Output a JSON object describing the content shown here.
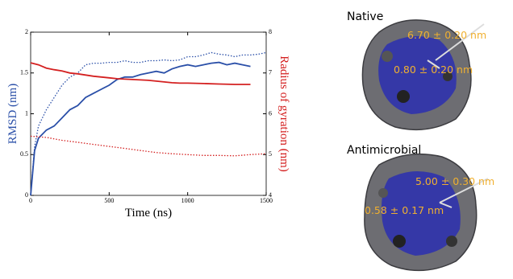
{
  "chart_data": {
    "type": "line",
    "xlabel": "Time (ns)",
    "ylabel": "RMSD (nm)",
    "y2label": "Radius of gyration (nm)",
    "ylabel_color": "#2a4fa8",
    "y2label_color": "#d42020",
    "xlim": [
      0,
      1500
    ],
    "xticks": [
      0,
      500,
      1000,
      1500
    ],
    "ylim": [
      0,
      2
    ],
    "yticks": [
      0,
      0.5,
      1,
      1.5,
      2
    ],
    "y2lim": [
      4,
      8
    ],
    "y2ticks": [
      4,
      5,
      6,
      7,
      8
    ],
    "series": [
      {
        "color": "#2a4fa8",
        "linestyle": "solid",
        "x": [
          0,
          25,
          50,
          100,
          150,
          200,
          250,
          300,
          350,
          400,
          450,
          500,
          550,
          600,
          650,
          700,
          750,
          800,
          850,
          900,
          950,
          1000,
          1050,
          1100,
          1150,
          1200,
          1250,
          1300,
          1350,
          1400
        ],
        "values": [
          0,
          0.55,
          0.7,
          0.8,
          0.85,
          0.95,
          1.05,
          1.1,
          1.2,
          1.25,
          1.3,
          1.35,
          1.42,
          1.45,
          1.45,
          1.48,
          1.5,
          1.52,
          1.5,
          1.55,
          1.58,
          1.6,
          1.58,
          1.6,
          1.62,
          1.63,
          1.6,
          1.62,
          1.6,
          1.58
        ]
      },
      {
        "color": "#2a4fa8",
        "linestyle": "dotted",
        "x": [
          0,
          25,
          50,
          100,
          150,
          200,
          250,
          300,
          350,
          400,
          450,
          500,
          550,
          600,
          650,
          700,
          750,
          800,
          850,
          900,
          950,
          1000,
          1050,
          1100,
          1150,
          1200,
          1250,
          1300,
          1350,
          1400,
          1450,
          1500
        ],
        "values": [
          0,
          0.6,
          0.85,
          1.05,
          1.2,
          1.35,
          1.45,
          1.5,
          1.6,
          1.62,
          1.62,
          1.63,
          1.63,
          1.65,
          1.63,
          1.63,
          1.65,
          1.65,
          1.66,
          1.65,
          1.66,
          1.7,
          1.7,
          1.72,
          1.75,
          1.73,
          1.72,
          1.7,
          1.72,
          1.72,
          1.73,
          1.75
        ]
      },
      {
        "color": "#d42020",
        "linestyle": "solid",
        "axis": "y2",
        "x": [
          0,
          50,
          100,
          150,
          200,
          250,
          300,
          350,
          400,
          450,
          500,
          550,
          600,
          650,
          700,
          750,
          800,
          850,
          900,
          950,
          1000,
          1100,
          1200,
          1300,
          1400
        ],
        "values": [
          7.25,
          7.2,
          7.12,
          7.08,
          7.05,
          7.0,
          6.98,
          6.95,
          6.92,
          6.9,
          6.88,
          6.86,
          6.85,
          6.84,
          6.83,
          6.82,
          6.8,
          6.78,
          6.76,
          6.75,
          6.75,
          6.74,
          6.73,
          6.72,
          6.72
        ]
      },
      {
        "color": "#d42020",
        "linestyle": "dotted",
        "axis": "y2",
        "x": [
          0,
          100,
          200,
          300,
          400,
          500,
          600,
          700,
          800,
          900,
          1000,
          1100,
          1200,
          1300,
          1400,
          1500
        ],
        "values": [
          5.45,
          5.42,
          5.35,
          5.3,
          5.25,
          5.2,
          5.15,
          5.1,
          5.05,
          5.02,
          5.0,
          4.98,
          4.98,
          4.97,
          5.0,
          5.02
        ]
      }
    ]
  },
  "images": [
    {
      "title": "Native",
      "annotations": [
        "6.70 ± 0.20 nm",
        "0.80 ± 0.20 nm"
      ]
    },
    {
      "title": "Antimicrobial",
      "annotations": [
        "5.00 ± 0.30 nm",
        "0.58 ± 0.17 nm"
      ]
    }
  ]
}
